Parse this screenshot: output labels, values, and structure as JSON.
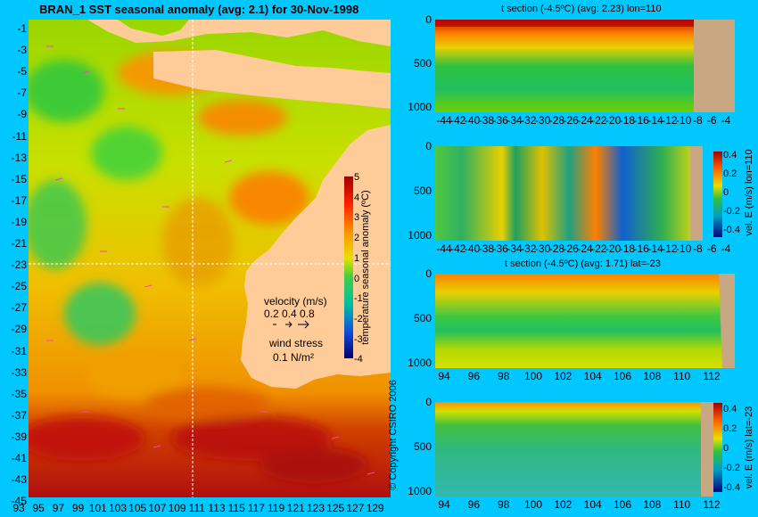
{
  "map": {
    "title": "BRAN_1  SST seasonal anomaly  (avg: 2.1) for 30-Nov-1998",
    "lat_ticks": [
      "-1",
      "-3",
      "-5",
      "-7",
      "-9",
      "-11",
      "-13",
      "-15",
      "-17",
      "-19",
      "-21",
      "-23",
      "-25",
      "-27",
      "-29",
      "-31",
      "-33",
      "-35",
      "-37",
      "-39",
      "-41",
      "-43",
      "-45"
    ],
    "lon_ticks": [
      "93",
      "95",
      "97",
      "99",
      "101",
      "103",
      "105",
      "107",
      "109",
      "111",
      "113",
      "115",
      "117",
      "119",
      "121",
      "123",
      "125",
      "127",
      "129"
    ],
    "colorbar": {
      "label": "temperature seasonal anomaly (ºC)",
      "ticks": [
        "5",
        "4",
        "3",
        "2",
        "1",
        "0",
        "-1",
        "-2",
        "-3",
        "-4"
      ]
    },
    "velocity_legend": {
      "title": "velocity (m/s)",
      "values": "0.2 0.4 0.8"
    },
    "wind_legend": {
      "title": "wind stress",
      "value": "0.1 N/m²"
    },
    "copyright": "© Copyright CSIRO 2006",
    "colors": {
      "background": "#00c8ff",
      "land": "#ffcc99",
      "section_land": "#c8a882",
      "vectors": "#ff3cc8",
      "crosshair": "#ffffff"
    }
  },
  "panels": [
    {
      "title": "t section (-4.5ºC) (avg: 2.23) lon=110",
      "y_ticks": [
        "0",
        "500",
        "1000"
      ],
      "x_ticks": [
        "-44",
        "-42",
        "-40",
        "-38",
        "-36",
        "-34",
        "-32",
        "-30",
        "-28",
        "-26",
        "-24",
        "-22",
        "-20",
        "-18",
        "-16",
        "-14",
        "-12",
        "-10",
        "-8",
        "-6",
        "-4"
      ]
    },
    {
      "title": "",
      "side_label": "vel. E (m/s) lon=110",
      "y_ticks": [
        "0",
        "500",
        "1000"
      ],
      "x_ticks": [
        "-44",
        "-42",
        "-40",
        "-38",
        "-36",
        "-34",
        "-32",
        "-30",
        "-28",
        "-26",
        "-24",
        "-22",
        "-20",
        "-18",
        "-16",
        "-14",
        "-12",
        "-10",
        "-8",
        "-6",
        "-4"
      ],
      "cbar_ticks": [
        "0.4",
        "0.2",
        "0",
        "-0.2",
        "-0.4"
      ]
    },
    {
      "title": "t section (-4.5ºC) (avg: 1.71) lat=-23",
      "y_ticks": [
        "0",
        "500",
        "1000"
      ],
      "x_ticks": [
        "94",
        "96",
        "98",
        "100",
        "102",
        "104",
        "106",
        "108",
        "110",
        "112"
      ]
    },
    {
      "title": "",
      "side_label": "vel. E (m/s) lat=-23",
      "y_ticks": [
        "0",
        "500",
        "1000"
      ],
      "x_ticks": [
        "94",
        "96",
        "98",
        "100",
        "102",
        "104",
        "106",
        "108",
        "110",
        "112"
      ],
      "cbar_ticks": [
        "0.4",
        "0.2",
        "0",
        "-0.2",
        "-0.4"
      ]
    }
  ]
}
